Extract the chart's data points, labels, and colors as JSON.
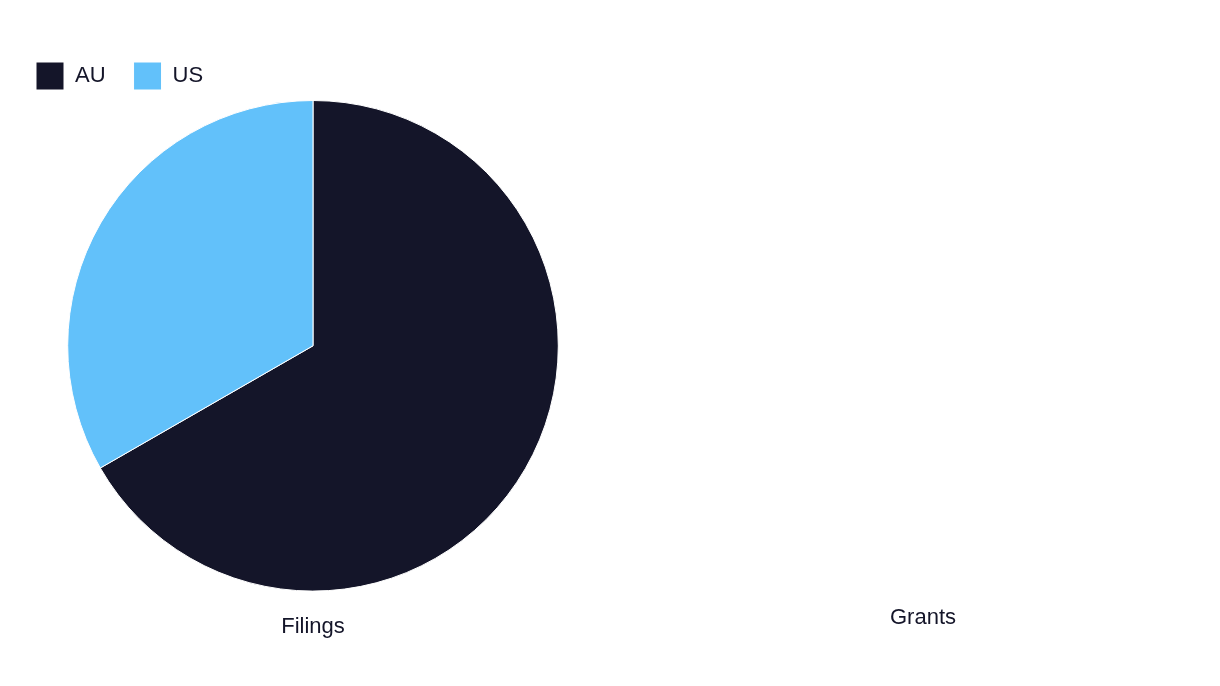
{
  "chart_data": [
    {
      "type": "pie",
      "title": "Filings",
      "categories": [
        "AU",
        "US"
      ],
      "values": [
        66.7,
        33.3
      ],
      "colors": [
        "#141529",
        "#62c1fa"
      ],
      "legend": "top left"
    },
    {
      "type": "other",
      "title": "Grants"
    }
  ]
}
